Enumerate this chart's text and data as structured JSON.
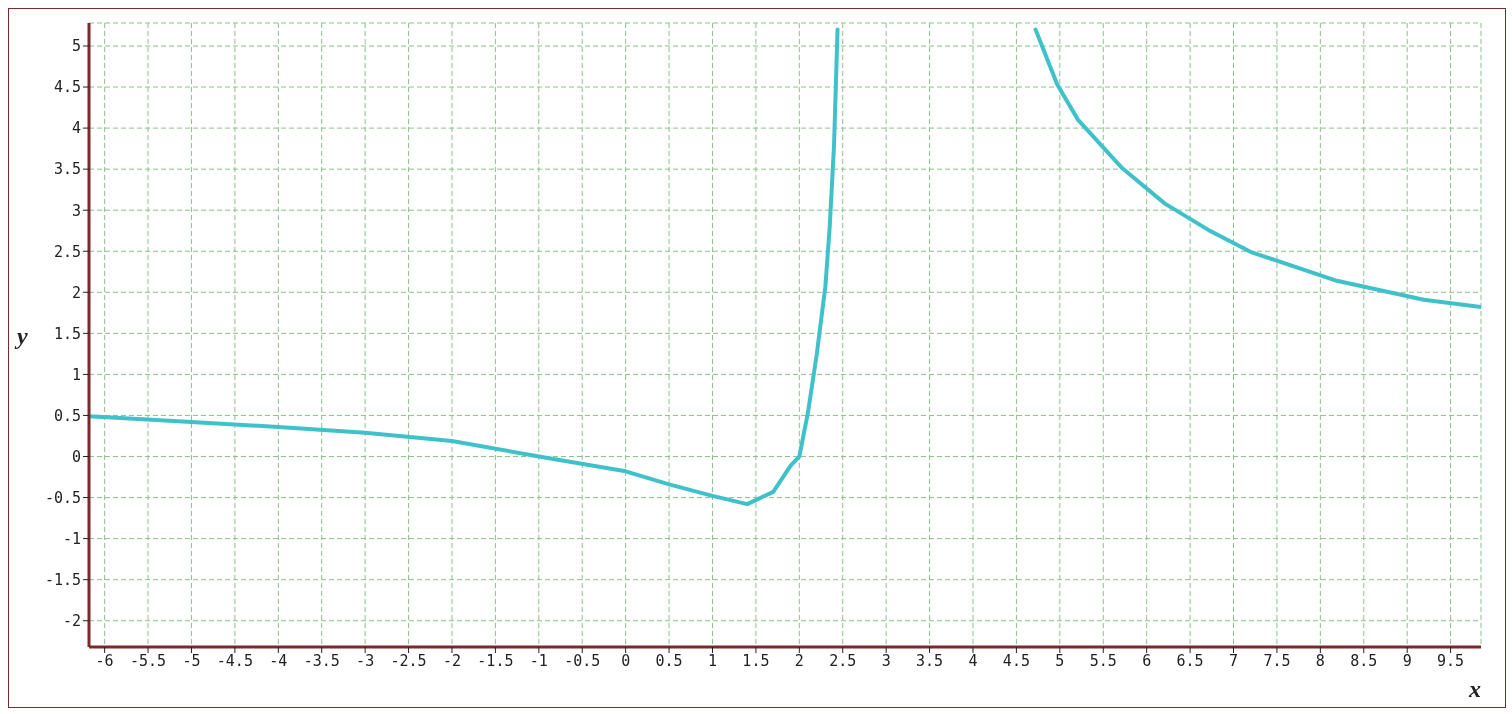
{
  "chart_data": {
    "type": "line",
    "xlabel": "x",
    "ylabel": "y",
    "x": [
      -6.18,
      -5,
      -4,
      -3,
      -2,
      -1,
      0,
      0.5,
      1,
      1.4,
      1.7,
      1.9,
      2,
      2.1,
      2.2,
      2.3,
      2.35,
      2.4,
      2.44,
      3.5,
      4.72,
      4.97,
      5.21,
      5.72,
      6.21,
      6.71,
      7.2,
      8.19,
      9.19,
      9.85
    ],
    "series": [
      {
        "color": "#3fc1c9",
        "values": [
          0.49,
          0.42,
          0.36,
          0.29,
          0.19,
          0,
          -0.18,
          -0.34,
          -0.48,
          -0.58,
          -0.43,
          -0.11,
          0,
          0.54,
          1.24,
          2.07,
          2.8,
          3.8,
          5.2,
          null,
          5.2,
          4.53,
          4.1,
          3.51,
          3.08,
          2.76,
          2.49,
          2.14,
          1.91,
          1.82
        ]
      }
    ],
    "xlim": [
      -6.18,
      9.85
    ],
    "ylim": [
      -2.32,
      5.28
    ],
    "xticks": [
      -6,
      -5.5,
      -5,
      -4.5,
      -4,
      -3.5,
      -3,
      -2.5,
      -2,
      -1.5,
      -1,
      -0.5,
      0,
      0.5,
      1,
      1.5,
      2,
      2.5,
      3,
      3.5,
      4,
      4.5,
      5,
      5.5,
      6,
      6.5,
      7,
      7.5,
      8,
      8.5,
      9,
      9.5
    ],
    "yticks": [
      -2,
      -1.5,
      -1,
      -0.5,
      0,
      0.5,
      1,
      1.5,
      2,
      2.5,
      3,
      3.5,
      4,
      4.5,
      5
    ],
    "grid": true,
    "marker": "none",
    "line_style": "solid"
  }
}
